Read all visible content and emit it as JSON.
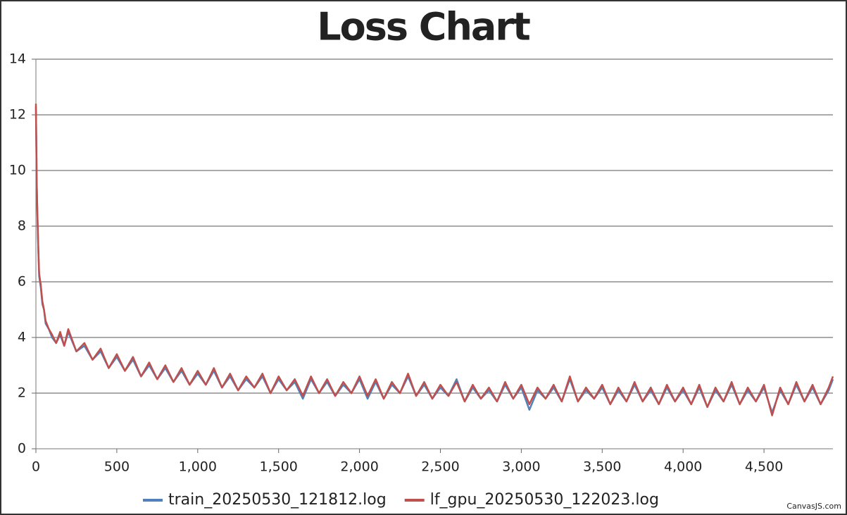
{
  "chart_data": {
    "type": "line",
    "title": "Loss Chart",
    "credit": "CanvasJS.com",
    "x": [
      0,
      5,
      10,
      15,
      20,
      30,
      40,
      50,
      60,
      80,
      100,
      125,
      150,
      175,
      200,
      250,
      300,
      350,
      400,
      450,
      500,
      550,
      600,
      650,
      700,
      750,
      800,
      850,
      900,
      950,
      1000,
      1050,
      1100,
      1150,
      1200,
      1250,
      1300,
      1350,
      1400,
      1450,
      1500,
      1550,
      1600,
      1650,
      1700,
      1750,
      1800,
      1850,
      1900,
      1950,
      2000,
      2050,
      2100,
      2150,
      2200,
      2250,
      2300,
      2350,
      2400,
      2450,
      2500,
      2550,
      2600,
      2650,
      2700,
      2750,
      2800,
      2850,
      2900,
      2950,
      3000,
      3050,
      3100,
      3150,
      3200,
      3250,
      3300,
      3350,
      3400,
      3450,
      3500,
      3550,
      3600,
      3650,
      3700,
      3750,
      3800,
      3850,
      3900,
      3950,
      4000,
      4050,
      4100,
      4150,
      4200,
      4250,
      4300,
      4350,
      4400,
      4450,
      4500,
      4550,
      4600,
      4650,
      4700,
      4750,
      4800,
      4850,
      4900,
      4926
    ],
    "series": [
      {
        "name": "train_20250530_121812.log",
        "color": "#4f81bc",
        "values": [
          12.3,
          9.5,
          8.2,
          7.1,
          6.2,
          5.8,
          5.2,
          5.0,
          4.5,
          4.3,
          4.0,
          3.8,
          4.1,
          3.7,
          4.2,
          3.5,
          3.7,
          3.2,
          3.5,
          2.9,
          3.3,
          2.8,
          3.2,
          2.6,
          3.0,
          2.5,
          2.9,
          2.4,
          2.8,
          2.3,
          2.7,
          2.3,
          2.8,
          2.2,
          2.6,
          2.1,
          2.5,
          2.2,
          2.6,
          2.0,
          2.5,
          2.1,
          2.4,
          1.8,
          2.5,
          2.0,
          2.4,
          1.9,
          2.3,
          2.0,
          2.5,
          1.8,
          2.4,
          1.8,
          2.3,
          2.0,
          2.6,
          1.9,
          2.3,
          1.8,
          2.2,
          1.9,
          2.5,
          1.7,
          2.2,
          1.8,
          2.1,
          1.7,
          2.3,
          1.8,
          2.2,
          1.4,
          2.1,
          1.8,
          2.2,
          1.7,
          2.5,
          1.7,
          2.1,
          1.8,
          2.2,
          1.6,
          2.1,
          1.7,
          2.3,
          1.7,
          2.1,
          1.6,
          2.2,
          1.7,
          2.1,
          1.6,
          2.2,
          1.5,
          2.1,
          1.7,
          2.3,
          1.6,
          2.1,
          1.7,
          2.2,
          1.3,
          2.1,
          1.6,
          2.3,
          1.7,
          2.2,
          1.6,
          2.1,
          2.5
        ]
      },
      {
        "name": "lf_gpu_20250530_122023.log",
        "color": "#c0504d",
        "values": [
          12.4,
          9.6,
          8.3,
          7.2,
          6.3,
          5.9,
          5.3,
          5.0,
          4.6,
          4.3,
          4.1,
          3.8,
          4.2,
          3.7,
          4.3,
          3.5,
          3.8,
          3.2,
          3.6,
          2.9,
          3.4,
          2.8,
          3.3,
          2.6,
          3.1,
          2.5,
          3.0,
          2.4,
          2.9,
          2.3,
          2.8,
          2.3,
          2.9,
          2.2,
          2.7,
          2.1,
          2.6,
          2.2,
          2.7,
          2.0,
          2.6,
          2.1,
          2.5,
          1.9,
          2.6,
          2.0,
          2.5,
          1.9,
          2.4,
          2.0,
          2.6,
          1.9,
          2.5,
          1.8,
          2.4,
          2.0,
          2.7,
          1.9,
          2.4,
          1.8,
          2.3,
          1.9,
          2.4,
          1.7,
          2.3,
          1.8,
          2.2,
          1.7,
          2.4,
          1.8,
          2.3,
          1.6,
          2.2,
          1.8,
          2.3,
          1.7,
          2.6,
          1.7,
          2.2,
          1.8,
          2.3,
          1.6,
          2.2,
          1.7,
          2.4,
          1.7,
          2.2,
          1.6,
          2.3,
          1.7,
          2.2,
          1.6,
          2.3,
          1.5,
          2.2,
          1.7,
          2.4,
          1.6,
          2.2,
          1.7,
          2.3,
          1.2,
          2.2,
          1.6,
          2.4,
          1.7,
          2.3,
          1.6,
          2.2,
          2.6
        ]
      }
    ],
    "xlim": [
      0,
      4926
    ],
    "xticks": [
      0,
      500,
      {
        "value": 1000,
        "label": "1,000"
      },
      {
        "value": 1500,
        "label": "1,500"
      },
      {
        "value": 2000,
        "label": "2,000"
      },
      {
        "value": 2500,
        "label": "2,500"
      },
      {
        "value": 3000,
        "label": "3,000"
      },
      {
        "value": 3500,
        "label": "3,500"
      },
      {
        "value": 4000,
        "label": "4,000"
      },
      {
        "value": 4500,
        "label": "4,500"
      }
    ],
    "ylim": [
      0,
      14
    ],
    "yticks": [
      0,
      2,
      4,
      6,
      8,
      10,
      12,
      14
    ],
    "grid": true,
    "legend": "bottom"
  }
}
